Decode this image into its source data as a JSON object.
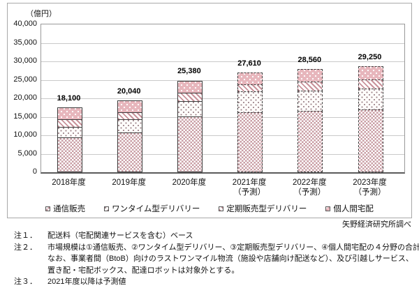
{
  "chart": {
    "unit_label": "（億円）",
    "source": "矢野経済研究所調べ"
  },
  "chart_data": {
    "type": "bar",
    "stacked": true,
    "title": "",
    "ylabel": "（億円）",
    "xlabel": "",
    "ylim": [
      0,
      40000
    ],
    "y_tick_step": 5000,
    "y_ticks": [
      "0",
      "5,000",
      "10,000",
      "15,000",
      "20,000",
      "25,000",
      "30,000",
      "35,000",
      "40,000"
    ],
    "grid": true,
    "legend_position": "bottom",
    "categories": [
      "2018年度",
      "2019年度",
      "2020年度",
      "2021年度",
      "2022年度",
      "2023年度"
    ],
    "category_sublabels": [
      "",
      "",
      "",
      "（予測）",
      "（予測）",
      "（予測）"
    ],
    "forecast": [
      false,
      false,
      false,
      true,
      true,
      true
    ],
    "totals": [
      18100,
      20040,
      25380,
      27610,
      28560,
      29250
    ],
    "total_labels": [
      "18,100",
      "20,040",
      "25,380",
      "27,610",
      "28,560",
      "29,250"
    ],
    "series": [
      {
        "name": "通信販売",
        "pattern": "checker",
        "values": [
          9400,
          10700,
          15100,
          16200,
          16700,
          17000
        ]
      },
      {
        "name": "ワンタイム型デリバリー",
        "pattern": "dots-light",
        "values": [
          3000,
          3900,
          4400,
          5800,
          5500,
          5800
        ]
      },
      {
        "name": "定期販売型デリバリー",
        "pattern": "stripes",
        "values": [
          2400,
          2040,
          2300,
          2200,
          2800,
          2600
        ]
      },
      {
        "name": "個人間宅配",
        "pattern": "dots-pink",
        "values": [
          3300,
          3400,
          3580,
          3410,
          3560,
          3850
        ]
      }
    ]
  },
  "colors": {
    "pink_checker": "#c99ea4",
    "pink_stripe": "#c9939b",
    "pink_fill": "#e7b6bc",
    "dot_gray": "#9b8289",
    "border_dark": "#3a3a3a",
    "grid_gray": "#c9c9c9"
  },
  "notes": [
    {
      "label": "注１．",
      "lines": [
        "配送料（宅配関連サービスを含む）ベース"
      ]
    },
    {
      "label": "注２．",
      "lines": [
        "市場規模は①通信販売、②ワンタイム型デリバリー、③定期販売型デリバリー、④個人間宅配の４分野の合計値。",
        "なお、事業者間（BtoB）向けのラストワンマイル物流（施設や店舗向け配送など）、及び引越しサービス、",
        "置き配・宅配ボックス、配達ロボットは対象外とする。"
      ]
    },
    {
      "label": "注３．",
      "lines": [
        "2021年度以降は予測値"
      ]
    }
  ]
}
